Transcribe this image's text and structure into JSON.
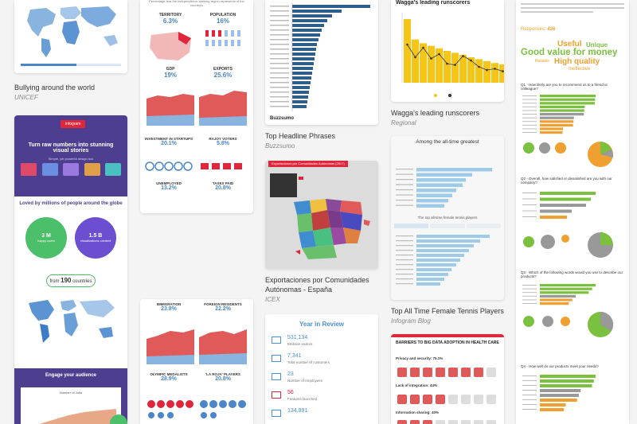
{
  "cards": [
    {
      "title": "Bullying around the world",
      "source": "UNICEF"
    },
    {
      "title": "Top Headline Phrases",
      "source": "Buzzsumo"
    },
    {
      "title": "Exportaciones por Comunidades Autónomas - España",
      "source": "ICEX"
    },
    {
      "title": "Wagga's leading runscorers",
      "source": "Regional"
    },
    {
      "title": "Top All Time Female Tennis Players",
      "source": "Infogram Blog"
    }
  ],
  "infogram": {
    "badge": "infogram",
    "headline": "Turn raw numbers into stunning visual stories",
    "subhead": "Simple, yet powerful design tool",
    "loved": "Loved by millions of people around the globe",
    "users_value": "3 M",
    "users_label": "happy users",
    "viz_value": "1.5 B",
    "viz_label": "visualizations created",
    "from_prefix": "from",
    "from_value": "190",
    "from_suffix": "countries",
    "engage": "Engage your audience",
    "jobs": "Number of Jobs"
  },
  "spain_left": {
    "top_text": "Percentage that the independence-seeking region represents of the country's",
    "territory_label": "TERRITORY",
    "territory_value": "6.3%",
    "population_label": "POPULATION",
    "population_value": "16%",
    "gdp_label": "GDP",
    "gdp_value": "19%",
    "exports_label": "EXPORTS",
    "exports_value": "25.6%",
    "investment_label": "INVESTMENT IN STARTUPS",
    "investment_value": "20.1%",
    "voters_label": "RAJOY VOTERS",
    "voters_value": "5.8%",
    "unemployed_label": "UNEMPLOYED",
    "unemployed_value": "13.2%",
    "taxes_label": "TAXES PAID",
    "taxes_value": "20.8%",
    "immigration_label": "IMMIGRATION",
    "immigration_value": "23.8%",
    "foreign_label": "FOREIGN RESIDENTS",
    "foreign_value": "22.2%",
    "olympic_label": "OLYMPIC MEDALISTS",
    "olympic_value": "28.9%",
    "roja_label": "'LA ROJA' PLAYERS",
    "roja_value": "20.8%"
  },
  "buzz": {
    "logo": "Buzzsumo",
    "bars": [
      0.98,
      0.62,
      0.5,
      0.44,
      0.4,
      0.37,
      0.35,
      0.33,
      0.31,
      0.3,
      0.29,
      0.28,
      0.27,
      0.26,
      0.25,
      0.24,
      0.23,
      0.22,
      0.21,
      0.2,
      0.19,
      0.18
    ]
  },
  "exports_map": {
    "banner": "Exportaciones por Comunidades Autónomas (2017)"
  },
  "year": {
    "title": "Year in Review",
    "items": [
      {
        "value": "531,134",
        "label": "Website visitors"
      },
      {
        "value": "7,341",
        "label": "Total number of customers"
      },
      {
        "value": "23",
        "label": "Number of employees"
      },
      {
        "value": "56",
        "label": "Features launched"
      },
      {
        "value": "134,891",
        "label": ""
      }
    ]
  },
  "wagga": {
    "title": "Wagga's leading runscorers",
    "bars": [
      100,
      68,
      62,
      58,
      54,
      50,
      47,
      44,
      40,
      37,
      34,
      31,
      29
    ],
    "line": [
      60,
      40,
      55,
      38,
      45,
      30,
      28,
      42,
      35,
      25,
      20,
      22,
      18
    ]
  },
  "tennis": {
    "title": "Among the all-time greatest",
    "subtitle": "The top all-time female tennis players",
    "bars1": [
      0.95,
      0.7,
      0.62,
      0.58,
      0.5,
      0.45,
      0.4,
      0.35
    ],
    "bars2": [
      0.92,
      0.8,
      0.72,
      0.66,
      0.6,
      0.55,
      0.5,
      0.44,
      0.4,
      0.35,
      0.3
    ]
  },
  "barriers": {
    "title": "BARRIERS TO BIG DATA ADOPTION IN HEALTH CARE",
    "privacy": "Privacy and security: 75.1%",
    "integration": "Lack of integration: 44%",
    "sharing": "Information sharing: 40%"
  },
  "survey": {
    "responses_label": "Responses:",
    "responses_value": "426",
    "words": [
      {
        "text": "Useful",
        "color": "#f0a030"
      },
      {
        "text": "Unique",
        "color": "#f0a030"
      },
      {
        "text": "Good value for money",
        "color": "#7cc040"
      },
      {
        "text": "High quality",
        "color": "#7cc040"
      },
      {
        "text": "Reliable",
        "color": "#f0a030"
      },
      {
        "text": "Ineffective",
        "color": "#f0a030"
      }
    ],
    "q1": "Q1 - How likely are you to recommend us to a friend or colleague?",
    "q2": "Q2 - Overall, how satisfied or dissatisfied are you with our company?",
    "q3": "Q3 - Which of the following words would you use to describe our products?",
    "q4": "Q4 - How well do our products meet your needs?",
    "colors": {
      "green": "#7cc040",
      "orange": "#f0a030",
      "gray": "#999999"
    }
  }
}
